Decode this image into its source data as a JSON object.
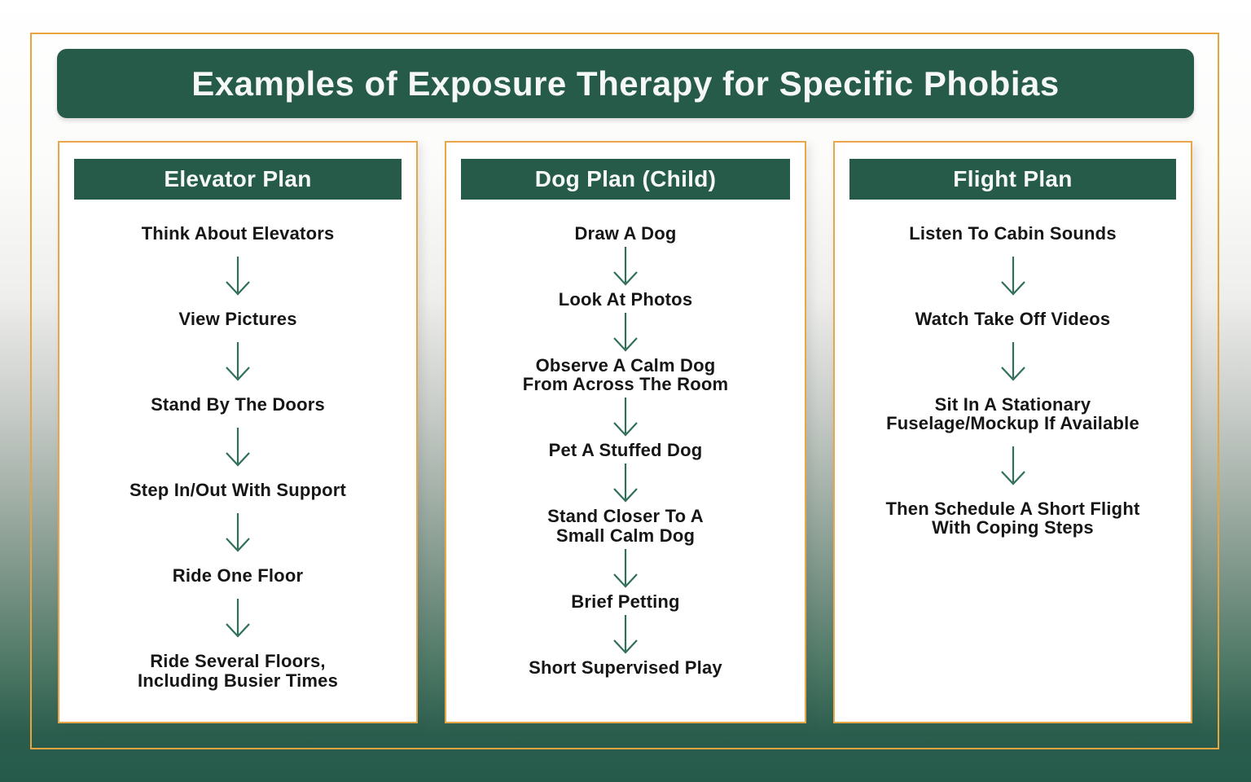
{
  "page": {
    "title": "Examples of Exposure Therapy for Specific Phobias"
  },
  "colors": {
    "dark_green": "#265b4a",
    "arrow_green": "#2f6f5b",
    "frame_orange": "#e9a440",
    "card_border_orange": "#eba648",
    "step_text": "#161616",
    "header_text": "#f6f8f7"
  },
  "icons": {
    "step_connector": "down-arrow"
  },
  "columns": [
    {
      "title": "Elevator Plan",
      "steps": [
        "Think About Elevators",
        "View Pictures",
        "Stand By The Doors",
        "Step In/Out With Support",
        "Ride One Floor",
        "Ride Several Floors,\nIncluding Busier Times"
      ]
    },
    {
      "title": "Dog Plan (Child)",
      "steps": [
        "Draw A Dog",
        "Look At Photos",
        "Observe A Calm Dog\nFrom Across The Room",
        "Pet A Stuffed Dog",
        "Stand Closer To A\nSmall Calm Dog",
        "Brief Petting",
        "Short Supervised Play"
      ]
    },
    {
      "title": "Flight Plan",
      "steps": [
        "Listen To Cabin Sounds",
        "Watch Take Off Videos",
        "Sit In A Stationary\nFuselage/Mockup If Available",
        "Then Schedule A Short Flight\nWith Coping Steps"
      ]
    }
  ]
}
